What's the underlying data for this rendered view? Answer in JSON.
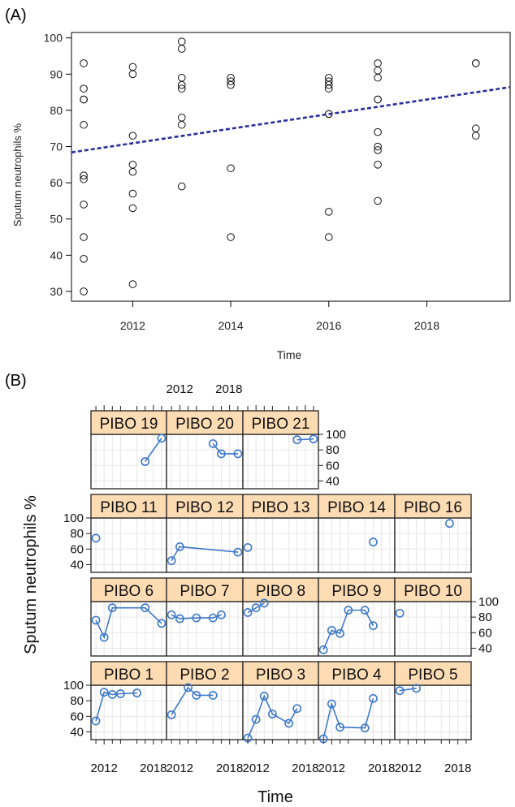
{
  "figure": {
    "panel_a_label": "(A)",
    "panel_b_label": "(B)"
  },
  "chart_data": [
    {
      "type": "scatter",
      "xlabel": "Time",
      "ylabel": "Sputum neutrophils %",
      "xlim": [
        2010.75,
        2019.7
      ],
      "ylim": [
        27.3,
        101.5
      ],
      "xticks": [
        2012,
        2014,
        2016,
        2018
      ],
      "yticks": [
        30,
        40,
        50,
        60,
        70,
        80,
        90,
        100
      ],
      "points": [
        [
          2011,
          93
        ],
        [
          2011,
          86
        ],
        [
          2011,
          83
        ],
        [
          2011,
          83
        ],
        [
          2011,
          76
        ],
        [
          2011,
          62
        ],
        [
          2011,
          61
        ],
        [
          2011,
          54
        ],
        [
          2011,
          45
        ],
        [
          2011,
          39
        ],
        [
          2011,
          30
        ],
        [
          2012,
          92
        ],
        [
          2012,
          90
        ],
        [
          2012,
          73
        ],
        [
          2012,
          65
        ],
        [
          2012,
          63
        ],
        [
          2012,
          57
        ],
        [
          2012,
          53
        ],
        [
          2012,
          32
        ],
        [
          2013,
          99
        ],
        [
          2013,
          97
        ],
        [
          2013,
          89
        ],
        [
          2013,
          87
        ],
        [
          2013,
          86
        ],
        [
          2013,
          78
        ],
        [
          2013,
          76
        ],
        [
          2013,
          59
        ],
        [
          2014,
          89
        ],
        [
          2014,
          88
        ],
        [
          2014,
          87
        ],
        [
          2014,
          64
        ],
        [
          2014,
          45
        ],
        [
          2016,
          89
        ],
        [
          2016,
          88
        ],
        [
          2016,
          87
        ],
        [
          2016,
          86
        ],
        [
          2016,
          79
        ],
        [
          2016,
          79
        ],
        [
          2016,
          52
        ],
        [
          2016,
          45
        ],
        [
          2017,
          93
        ],
        [
          2017,
          91
        ],
        [
          2017,
          89
        ],
        [
          2017,
          83
        ],
        [
          2017,
          83
        ],
        [
          2017,
          74
        ],
        [
          2017,
          70
        ],
        [
          2017,
          69
        ],
        [
          2017,
          65
        ],
        [
          2017,
          55
        ],
        [
          2019,
          93
        ],
        [
          2019,
          93
        ],
        [
          2019,
          75
        ],
        [
          2019,
          73
        ]
      ],
      "trend_line": {
        "x": [
          2010.75,
          2019.7
        ],
        "y": [
          68.4,
          86.4
        ],
        "color": "#2b2d9e",
        "style": "dashed"
      },
      "grid": false
    },
    {
      "type": "line",
      "xlabel": "Time",
      "ylabel": "Sputum neutrophils %",
      "xlim": [
        2010.4,
        2019.6
      ],
      "ylim": [
        30,
        100
      ],
      "xticks": [
        2012,
        2018
      ],
      "yticks": [
        40,
        60,
        80,
        100
      ],
      "strip_color": "#fddcb4",
      "line_color": "#3d78c9",
      "panels": [
        {
          "label": "PIBO 19",
          "x": [
            2017,
            2019
          ],
          "y": [
            65,
            95
          ]
        },
        {
          "label": "PIBO 20",
          "x": [
            2016,
            2017,
            2019
          ],
          "y": [
            88,
            75,
            75
          ]
        },
        {
          "label": "PIBO 21",
          "x": [
            2017,
            2019
          ],
          "y": [
            93,
            94
          ]
        },
        {
          "label": "PIBO 11",
          "x": [
            2011
          ],
          "y": [
            74
          ]
        },
        {
          "label": "PIBO 12",
          "x": [
            2011,
            2012,
            2019
          ],
          "y": [
            45,
            63,
            56
          ]
        },
        {
          "label": "PIBO 13",
          "x": [
            2011
          ],
          "y": [
            62
          ]
        },
        {
          "label": "PIBO 14",
          "x": [
            2017
          ],
          "y": [
            69
          ]
        },
        {
          "label": "PIBO 16",
          "x": [
            2017
          ],
          "y": [
            93
          ]
        },
        {
          "label": "PIBO 6",
          "x": [
            2011,
            2012,
            2013,
            2017,
            2019
          ],
          "y": [
            76,
            54,
            92,
            92,
            72
          ]
        },
        {
          "label": "PIBO 7",
          "x": [
            2011,
            2012,
            2014,
            2016,
            2017
          ],
          "y": [
            83,
            78,
            79,
            79,
            83
          ]
        },
        {
          "label": "PIBO 8",
          "x": [
            2011,
            2012,
            2013
          ],
          "y": [
            86,
            92,
            98
          ]
        },
        {
          "label": "PIBO 9",
          "x": [
            2011,
            2012,
            2013,
            2014,
            2016,
            2017
          ],
          "y": [
            38,
            63,
            59,
            89,
            89,
            69
          ]
        },
        {
          "label": "PIBO 10",
          "x": [
            2011
          ],
          "y": [
            85
          ]
        },
        {
          "label": "PIBO 1",
          "x": [
            2011,
            2012,
            2013,
            2014,
            2016
          ],
          "y": [
            54,
            91,
            88,
            89,
            90
          ]
        },
        {
          "label": "PIBO 2",
          "x": [
            2011,
            2013,
            2014,
            2016
          ],
          "y": [
            62,
            97,
            87,
            87
          ]
        },
        {
          "label": "PIBO 3",
          "x": [
            2011,
            2012,
            2013,
            2014,
            2016,
            2017
          ],
          "y": [
            32,
            56,
            86,
            63,
            51,
            70
          ]
        },
        {
          "label": "PIBO 4",
          "x": [
            2011,
            2012,
            2013,
            2016,
            2017
          ],
          "y": [
            31,
            76,
            46,
            45,
            83
          ]
        },
        {
          "label": "PIBO 5",
          "x": [
            2011,
            2013
          ],
          "y": [
            93,
            96
          ]
        }
      ],
      "grid": true
    }
  ]
}
